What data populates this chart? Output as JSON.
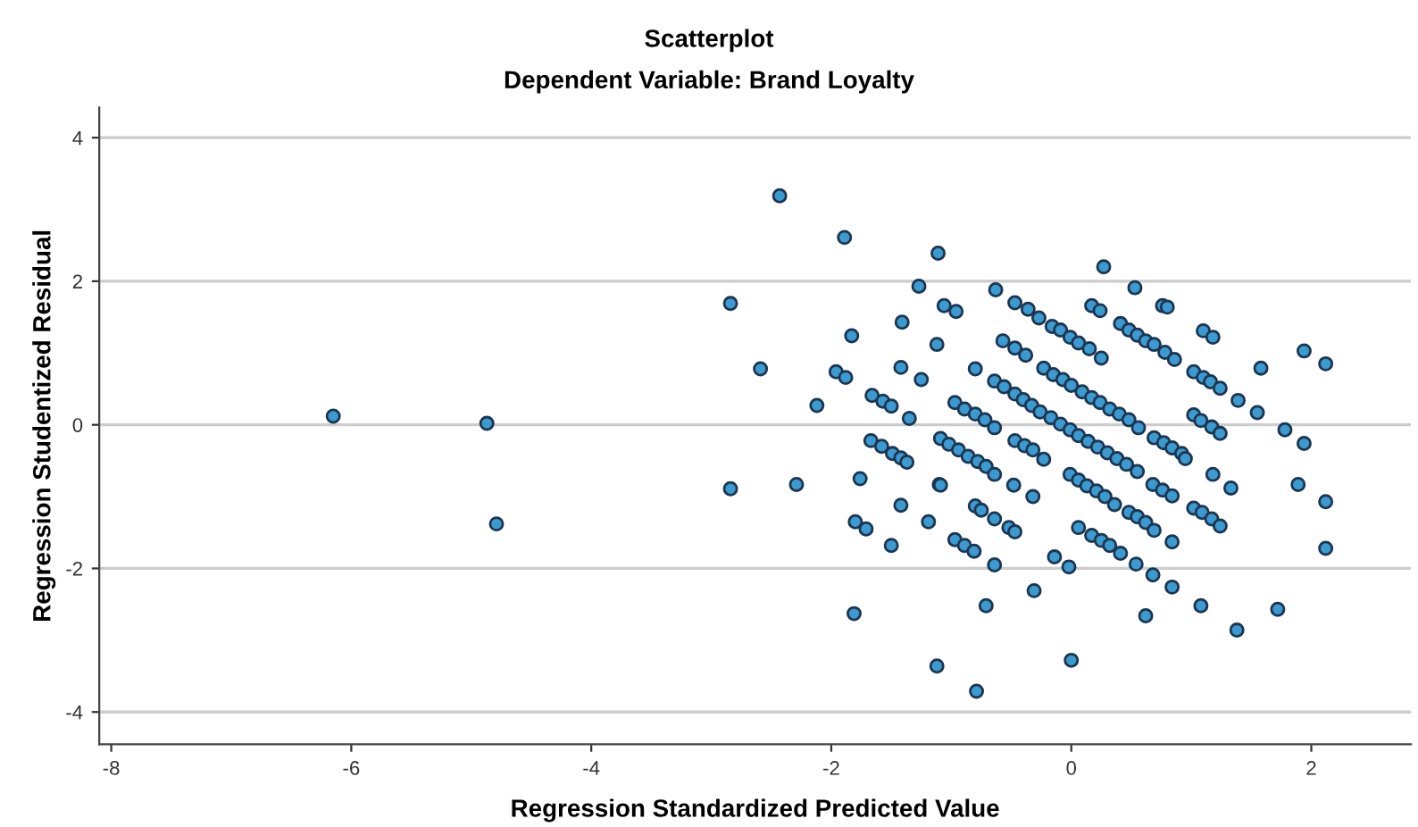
{
  "chart_data": {
    "type": "scatter",
    "title": "Scatterplot",
    "subtitle": "Dependent Variable: Brand Loyalty",
    "xlabel": "Regression Standardized Predicted Value",
    "ylabel": "Regression Studentized Residual",
    "xlim": [
      -8.1,
      2.83
    ],
    "xticks": [
      -8,
      -6,
      -4,
      -2,
      0,
      2
    ],
    "ylim": [
      -4.45,
      4.42
    ],
    "yticks": [
      -4,
      -2,
      0,
      2,
      4
    ],
    "grid": "y",
    "marker": "circle",
    "series": [
      {
        "color": "#3b9ad0",
        "x": [
          -6.15,
          -4.87,
          -4.79,
          -2.43,
          -1.89,
          -1.11,
          -2.84,
          -1.27,
          -1.06,
          -1.41,
          -1.83,
          -1.12,
          -2.59,
          -1.96,
          -1.88,
          -1.42,
          -1.25,
          -2.12,
          -1.66,
          -1.57,
          -1.5,
          -1.35,
          -1.67,
          -1.58,
          -1.49,
          -1.42,
          -1.37,
          -2.84,
          -2.29,
          -1.76,
          -1.1,
          -1.42,
          -1.8,
          -1.19,
          -1.71,
          -1.5,
          -1.81,
          -1.12,
          0.27,
          -0.63,
          0.53,
          -0.96,
          -0.47,
          -0.36,
          -0.27,
          0.17,
          0.24,
          0.76,
          0.8,
          1.1,
          1.18,
          1.94,
          2.12,
          1.58,
          1.39,
          1.55,
          1.78,
          1.94,
          1.89,
          2.12,
          -0.57,
          -0.47,
          -0.38,
          -0.8,
          -0.16,
          -0.09,
          -0.01,
          0.06,
          0.15,
          0.25,
          0.41,
          0.48,
          0.55,
          0.62,
          0.69,
          0.78,
          0.86,
          1.02,
          1.1,
          1.16,
          1.24,
          -0.23,
          -0.15,
          -0.07,
          0.0,
          0.09,
          0.17,
          0.24,
          0.32,
          0.4,
          0.48,
          0.56,
          -0.64,
          -0.56,
          -0.47,
          -0.4,
          -0.97,
          -0.89,
          -0.8,
          -0.72,
          -0.64,
          -0.33,
          -0.26,
          -0.17,
          -0.09,
          -0.01,
          0.06,
          0.14,
          0.22,
          0.3,
          0.38,
          0.46,
          0.55,
          0.69,
          0.77,
          0.84,
          0.92,
          0.95,
          1.02,
          1.08,
          1.17,
          1.24,
          -1.09,
          -1.02,
          -0.94,
          -0.86,
          -0.78,
          -0.71,
          -0.64,
          -0.47,
          -0.39,
          -0.32,
          -0.23,
          -0.01,
          0.06,
          0.13,
          0.21,
          0.28,
          0.36,
          0.48,
          0.55,
          0.62,
          0.69,
          0.68,
          0.76,
          0.84,
          1.18,
          1.33,
          -1.09,
          -0.48,
          -0.32,
          -0.8,
          -0.75,
          -0.64,
          -0.52,
          -0.47,
          1.02,
          1.09,
          1.17,
          1.24,
          -0.97,
          -0.89,
          -0.81,
          -0.64,
          -0.14,
          -0.02,
          0.06,
          0.17,
          0.25,
          0.32,
          0.41,
          0.54,
          0.68,
          0.84,
          0.84,
          -0.71,
          -0.31,
          0.62,
          1.08,
          1.38,
          1.72,
          -0.79,
          0.0,
          2.12
        ],
        "values": [
          0.12,
          0.02,
          -1.38,
          3.19,
          2.61,
          2.39,
          1.69,
          1.93,
          1.66,
          1.43,
          1.24,
          1.12,
          0.78,
          0.74,
          0.66,
          0.8,
          0.63,
          0.27,
          0.41,
          0.33,
          0.26,
          0.09,
          -0.22,
          -0.3,
          -0.4,
          -0.46,
          -0.52,
          -0.89,
          -0.83,
          -0.75,
          -0.83,
          -1.12,
          -1.35,
          -1.35,
          -1.45,
          -1.68,
          -2.63,
          -3.36,
          2.2,
          1.88,
          1.91,
          1.58,
          1.7,
          1.61,
          1.49,
          1.66,
          1.59,
          1.66,
          1.64,
          1.31,
          1.22,
          1.03,
          0.85,
          0.79,
          0.34,
          0.17,
          -0.07,
          -0.26,
          -0.83,
          -1.07,
          1.17,
          1.07,
          0.97,
          0.78,
          1.37,
          1.32,
          1.22,
          1.14,
          1.06,
          0.93,
          1.41,
          1.32,
          1.25,
          1.17,
          1.12,
          1.01,
          0.91,
          0.74,
          0.66,
          0.6,
          0.51,
          0.79,
          0.7,
          0.63,
          0.55,
          0.46,
          0.38,
          0.31,
          0.22,
          0.15,
          0.07,
          -0.04,
          0.61,
          0.53,
          0.43,
          0.35,
          0.31,
          0.22,
          0.15,
          0.07,
          -0.04,
          0.27,
          0.18,
          0.1,
          0.01,
          -0.07,
          -0.15,
          -0.23,
          -0.31,
          -0.39,
          -0.47,
          -0.55,
          -0.65,
          -0.18,
          -0.25,
          -0.32,
          -0.4,
          -0.47,
          0.14,
          0.06,
          -0.03,
          -0.12,
          -0.19,
          -0.27,
          -0.35,
          -0.44,
          -0.51,
          -0.58,
          -0.69,
          -0.22,
          -0.29,
          -0.35,
          -0.48,
          -0.69,
          -0.77,
          -0.85,
          -0.92,
          -1.0,
          -1.11,
          -1.22,
          -1.28,
          -1.36,
          -1.47,
          -0.83,
          -0.91,
          -0.99,
          -0.69,
          -0.88,
          -0.84,
          -0.84,
          -1.0,
          -1.13,
          -1.19,
          -1.31,
          -1.43,
          -1.49,
          -1.16,
          -1.22,
          -1.31,
          -1.41,
          -1.6,
          -1.68,
          -1.76,
          -1.95,
          -1.84,
          -1.98,
          -1.43,
          -1.54,
          -1.61,
          -1.68,
          -1.79,
          -1.94,
          -2.09,
          -2.26,
          -1.63,
          -2.52,
          -2.31,
          -2.66,
          -2.52,
          -2.86,
          -2.57,
          -3.71,
          -3.28,
          -1.72
        ]
      }
    ]
  }
}
